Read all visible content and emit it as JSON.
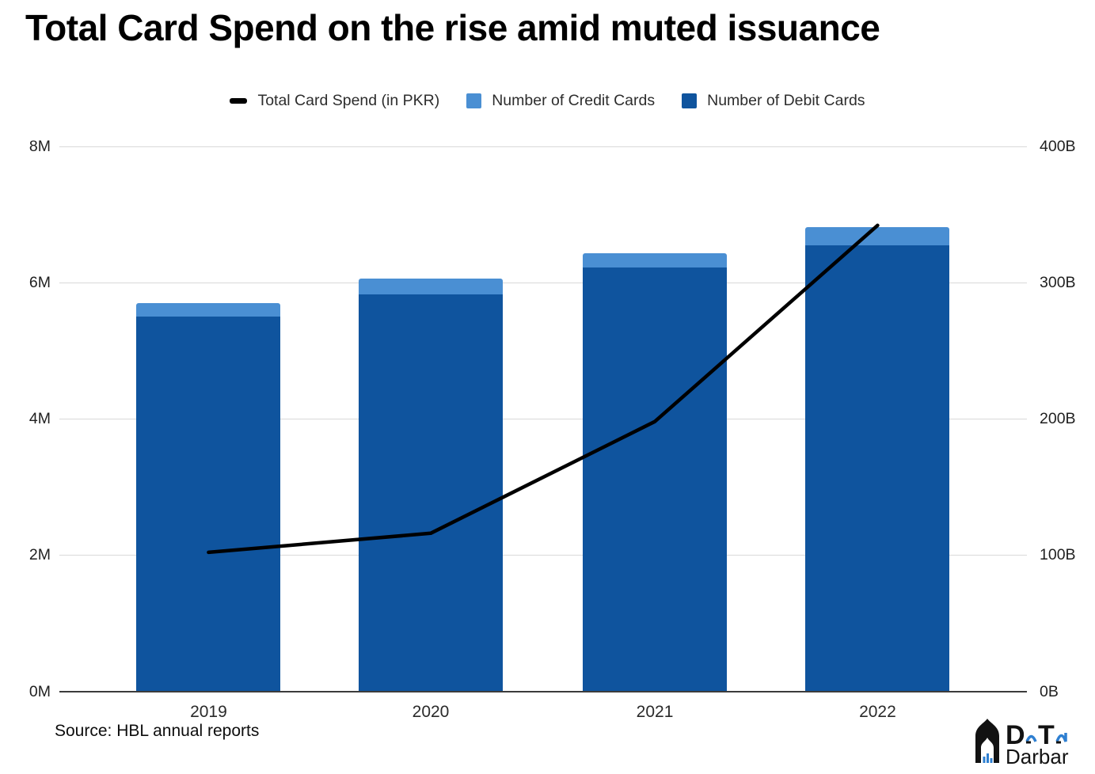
{
  "title": "Total Card Spend on the rise amid muted issuance",
  "source_note": "Source: HBL annual reports",
  "colors": {
    "spend_line": "#000000",
    "credit_cards": "#4a8fd3",
    "debit_cards": "#0f549e",
    "gridline": "#d9d9d9",
    "axis": "#3c3c3c",
    "logo_blue": "#2e7fd1",
    "logo_black": "#121212"
  },
  "legend": [
    {
      "label": "Total Card Spend (in PKR)",
      "swatch": "dash",
      "color": "#000000"
    },
    {
      "label": "Number of Credit Cards",
      "swatch": "square",
      "color": "#4a8fd3"
    },
    {
      "label": "Number of Debit Cards",
      "swatch": "square",
      "color": "#0f549e"
    }
  ],
  "chart_data": {
    "type": "bar",
    "subtype": "stacked-bars-with-line",
    "title": "Total Card Spend on the rise amid muted issuance",
    "categories": [
      "2019",
      "2020",
      "2021",
      "2022"
    ],
    "series": [
      {
        "name": "Number of Debit Cards",
        "type": "bar",
        "axis": "left",
        "unit": "M cards",
        "color": "#0f549e",
        "values": [
          5.5,
          5.83,
          6.22,
          6.55
        ]
      },
      {
        "name": "Number of Credit Cards",
        "type": "bar",
        "axis": "left",
        "unit": "M cards",
        "color": "#4a8fd3",
        "values": [
          0.2,
          0.23,
          0.21,
          0.26
        ]
      },
      {
        "name": "Total Card Spend (in PKR)",
        "type": "line",
        "axis": "right",
        "unit": "B PKR",
        "color": "#000000",
        "values": [
          102,
          116,
          198,
          342
        ]
      }
    ],
    "left_axis": {
      "label": "",
      "min": 0,
      "max": 8,
      "ticks_top_to_bottom": [
        "8M",
        "6M",
        "4M",
        "2M",
        "0M"
      ]
    },
    "right_axis": {
      "label": "",
      "min": 0,
      "max": 400,
      "ticks_top_to_bottom": [
        "400B",
        "300B",
        "200B",
        "100B",
        "0B"
      ]
    },
    "grid": true,
    "legend_position": "top"
  },
  "logo": {
    "word_d": "D",
    "word_t": "T",
    "word_bottom": "Darbar"
  }
}
